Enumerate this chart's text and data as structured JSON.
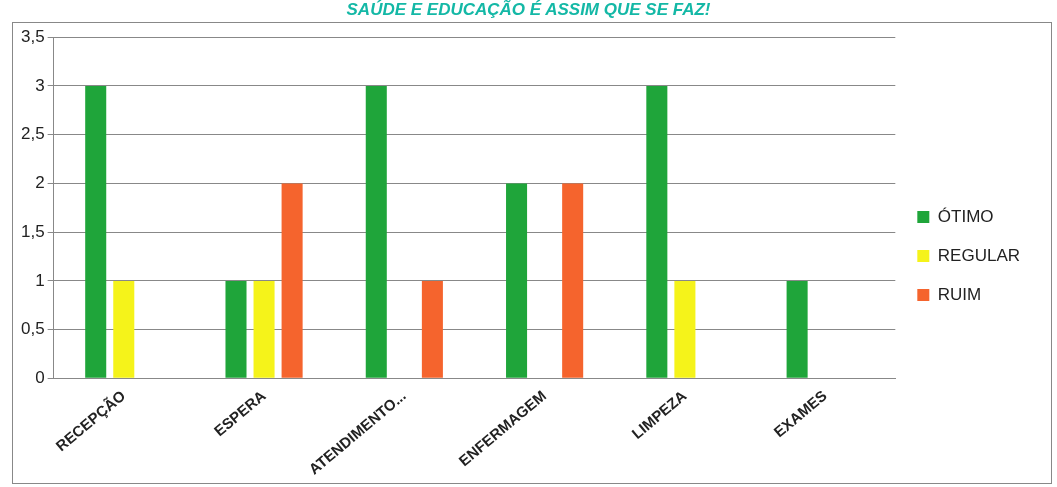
{
  "chart_data": {
    "type": "bar",
    "title": "SAÚDE E EDUCAÇÃO É ASSIM QUE SE FAZ!",
    "categories": [
      "RECEPÇÃO",
      "ESPERA",
      "ATENDIMENTO...",
      "ENFERMAGEM",
      "LIMPEZA",
      "EXAMES"
    ],
    "series": [
      {
        "name": "ÓTIMO",
        "color": "#1fa53a",
        "values": [
          3,
          1,
          3,
          2,
          3,
          1
        ]
      },
      {
        "name": "REGULAR",
        "color": "#f5f31a",
        "values": [
          1,
          1,
          0,
          0,
          1,
          0
        ]
      },
      {
        "name": "RUIM",
        "color": "#f5642d",
        "values": [
          0,
          2,
          1,
          2,
          0,
          0
        ]
      }
    ],
    "ylim": [
      0,
      3.5
    ],
    "yticks": [
      {
        "value": 0,
        "label": "0"
      },
      {
        "value": 0.5,
        "label": "0,5"
      },
      {
        "value": 1,
        "label": "1"
      },
      {
        "value": 1.5,
        "label": "1,5"
      },
      {
        "value": 2,
        "label": "2"
      },
      {
        "value": 2.5,
        "label": "2,5"
      },
      {
        "value": 3,
        "label": "3"
      },
      {
        "value": 3.5,
        "label": "3,5"
      }
    ],
    "grid": "y",
    "legend": "right"
  }
}
